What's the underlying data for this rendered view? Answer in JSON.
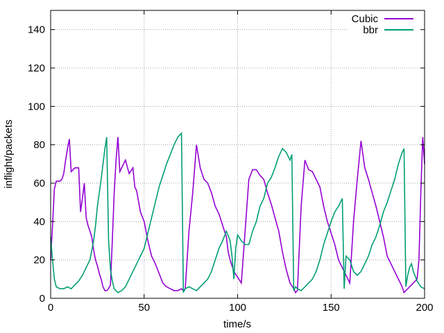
{
  "chart_data": {
    "type": "line",
    "xlabel": "time/s",
    "ylabel": "inflight/packets",
    "xlim": [
      0,
      200
    ],
    "ylim": [
      0,
      150
    ],
    "xticks": [
      0,
      50,
      100,
      150,
      200
    ],
    "yticks": [
      0,
      20,
      40,
      60,
      80,
      100,
      120,
      140
    ],
    "grid": true,
    "legend_position": "top-right",
    "series": [
      {
        "name": "Cubic",
        "color": "#9400d3",
        "points": [
          [
            0,
            20
          ],
          [
            1,
            38
          ],
          [
            2,
            57
          ],
          [
            3,
            61
          ],
          [
            5,
            61
          ],
          [
            6,
            62
          ],
          [
            7,
            65
          ],
          [
            8,
            72
          ],
          [
            9,
            78
          ],
          [
            10,
            83
          ],
          [
            11,
            66
          ],
          [
            13,
            68
          ],
          [
            15,
            68
          ],
          [
            16,
            45
          ],
          [
            17,
            52
          ],
          [
            18,
            60
          ],
          [
            19,
            42
          ],
          [
            20,
            38
          ],
          [
            22,
            32
          ],
          [
            23,
            25
          ],
          [
            24,
            20
          ],
          [
            25,
            17
          ],
          [
            26,
            13
          ],
          [
            27,
            10
          ],
          [
            28,
            6
          ],
          [
            29,
            4
          ],
          [
            30,
            4
          ],
          [
            31,
            5
          ],
          [
            32,
            7
          ],
          [
            33,
            30
          ],
          [
            34,
            55
          ],
          [
            35,
            72
          ],
          [
            36,
            84
          ],
          [
            37,
            66
          ],
          [
            38,
            68
          ],
          [
            40,
            72
          ],
          [
            42,
            65
          ],
          [
            44,
            68
          ],
          [
            45,
            58
          ],
          [
            46,
            56
          ],
          [
            48,
            45
          ],
          [
            50,
            40
          ],
          [
            52,
            30
          ],
          [
            54,
            22
          ],
          [
            56,
            18
          ],
          [
            58,
            13
          ],
          [
            60,
            8
          ],
          [
            62,
            6
          ],
          [
            64,
            5
          ],
          [
            66,
            4
          ],
          [
            68,
            4
          ],
          [
            70,
            5
          ],
          [
            71,
            4
          ],
          [
            72,
            5
          ],
          [
            74,
            35
          ],
          [
            76,
            55
          ],
          [
            78,
            80
          ],
          [
            80,
            68
          ],
          [
            82,
            62
          ],
          [
            84,
            60
          ],
          [
            86,
            55
          ],
          [
            88,
            48
          ],
          [
            90,
            44
          ],
          [
            92,
            38
          ],
          [
            94,
            32
          ],
          [
            95,
            24
          ],
          [
            96,
            20
          ],
          [
            98,
            14
          ],
          [
            100,
            11
          ],
          [
            102,
            8
          ],
          [
            104,
            35
          ],
          [
            106,
            62
          ],
          [
            108,
            67
          ],
          [
            110,
            67
          ],
          [
            112,
            64
          ],
          [
            114,
            62
          ],
          [
            116,
            55
          ],
          [
            118,
            49
          ],
          [
            120,
            42
          ],
          [
            122,
            35
          ],
          [
            124,
            24
          ],
          [
            126,
            15
          ],
          [
            128,
            8
          ],
          [
            130,
            5
          ],
          [
            131,
            3
          ],
          [
            132,
            4
          ],
          [
            134,
            48
          ],
          [
            136,
            72
          ],
          [
            138,
            67
          ],
          [
            140,
            66
          ],
          [
            142,
            62
          ],
          [
            144,
            58
          ],
          [
            146,
            48
          ],
          [
            148,
            40
          ],
          [
            150,
            34
          ],
          [
            152,
            28
          ],
          [
            154,
            20
          ],
          [
            156,
            16
          ],
          [
            158,
            12
          ],
          [
            160,
            8
          ],
          [
            162,
            40
          ],
          [
            164,
            62
          ],
          [
            166,
            82
          ],
          [
            168,
            68
          ],
          [
            170,
            62
          ],
          [
            172,
            55
          ],
          [
            174,
            48
          ],
          [
            176,
            40
          ],
          [
            178,
            32
          ],
          [
            180,
            22
          ],
          [
            182,
            18
          ],
          [
            184,
            14
          ],
          [
            186,
            10
          ],
          [
            188,
            6
          ],
          [
            189,
            3
          ],
          [
            190,
            4
          ],
          [
            192,
            6
          ],
          [
            194,
            8
          ],
          [
            196,
            10
          ],
          [
            197,
            20
          ],
          [
            198,
            55
          ],
          [
            199,
            84
          ],
          [
            200,
            70
          ]
        ]
      },
      {
        "name": "bbr",
        "color": "#009e73",
        "points": [
          [
            0,
            32
          ],
          [
            1,
            20
          ],
          [
            2,
            10
          ],
          [
            3,
            6
          ],
          [
            5,
            5
          ],
          [
            7,
            5
          ],
          [
            9,
            6
          ],
          [
            11,
            5
          ],
          [
            13,
            7
          ],
          [
            15,
            9
          ],
          [
            17,
            12
          ],
          [
            19,
            16
          ],
          [
            21,
            20
          ],
          [
            23,
            30
          ],
          [
            24,
            38
          ],
          [
            25,
            48
          ],
          [
            26,
            55
          ],
          [
            27,
            62
          ],
          [
            28,
            70
          ],
          [
            29,
            78
          ],
          [
            30,
            84
          ],
          [
            31,
            30
          ],
          [
            32,
            15
          ],
          [
            33,
            9
          ],
          [
            34,
            5
          ],
          [
            36,
            3
          ],
          [
            38,
            4
          ],
          [
            40,
            6
          ],
          [
            42,
            10
          ],
          [
            44,
            14
          ],
          [
            46,
            18
          ],
          [
            48,
            22
          ],
          [
            50,
            26
          ],
          [
            52,
            34
          ],
          [
            54,
            42
          ],
          [
            56,
            50
          ],
          [
            58,
            58
          ],
          [
            60,
            64
          ],
          [
            62,
            70
          ],
          [
            64,
            75
          ],
          [
            66,
            80
          ],
          [
            68,
            84
          ],
          [
            70,
            86
          ],
          [
            71,
            3
          ],
          [
            72,
            5
          ],
          [
            74,
            6
          ],
          [
            76,
            5
          ],
          [
            78,
            4
          ],
          [
            80,
            6
          ],
          [
            82,
            8
          ],
          [
            84,
            10
          ],
          [
            86,
            14
          ],
          [
            88,
            20
          ],
          [
            90,
            26
          ],
          [
            92,
            30
          ],
          [
            94,
            35
          ],
          [
            96,
            30
          ],
          [
            97,
            22
          ],
          [
            98,
            10
          ],
          [
            99,
            26
          ],
          [
            100,
            33
          ],
          [
            102,
            30
          ],
          [
            104,
            28
          ],
          [
            106,
            28
          ],
          [
            108,
            35
          ],
          [
            110,
            40
          ],
          [
            112,
            48
          ],
          [
            114,
            52
          ],
          [
            116,
            60
          ],
          [
            118,
            63
          ],
          [
            120,
            68
          ],
          [
            122,
            74
          ],
          [
            124,
            78
          ],
          [
            126,
            76
          ],
          [
            128,
            72
          ],
          [
            129,
            75
          ],
          [
            130,
            4
          ],
          [
            131,
            6
          ],
          [
            132,
            5
          ],
          [
            134,
            4
          ],
          [
            136,
            6
          ],
          [
            138,
            8
          ],
          [
            140,
            10
          ],
          [
            142,
            14
          ],
          [
            144,
            20
          ],
          [
            146,
            28
          ],
          [
            148,
            34
          ],
          [
            150,
            40
          ],
          [
            152,
            45
          ],
          [
            154,
            48
          ],
          [
            156,
            52
          ],
          [
            157,
            5
          ],
          [
            158,
            22
          ],
          [
            160,
            20
          ],
          [
            162,
            14
          ],
          [
            164,
            12
          ],
          [
            166,
            14
          ],
          [
            168,
            18
          ],
          [
            170,
            22
          ],
          [
            172,
            28
          ],
          [
            174,
            32
          ],
          [
            176,
            38
          ],
          [
            178,
            45
          ],
          [
            180,
            50
          ],
          [
            182,
            56
          ],
          [
            184,
            62
          ],
          [
            186,
            70
          ],
          [
            188,
            76
          ],
          [
            189,
            78
          ],
          [
            190,
            6
          ],
          [
            191,
            12
          ],
          [
            192,
            16
          ],
          [
            193,
            18
          ],
          [
            194,
            14
          ],
          [
            196,
            9
          ],
          [
            198,
            6
          ],
          [
            200,
            5
          ]
        ]
      }
    ]
  }
}
